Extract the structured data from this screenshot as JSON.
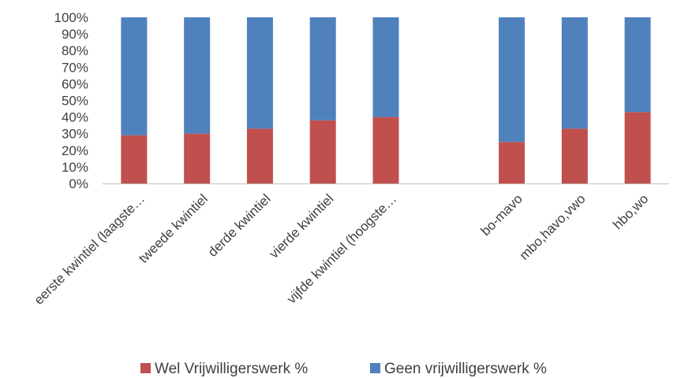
{
  "chart_data": {
    "type": "bar",
    "stacked": true,
    "categories": [
      "eerste kwintiel (laagste…",
      "tweede kwintiel",
      "derde kwintiel",
      "vierde kwintiel",
      "vijfde kwintiel (hoogste…",
      "",
      "bo-mavo",
      "mbo,havo,vwo",
      "hbo,wo"
    ],
    "series": [
      {
        "name": "Wel Vrijwilligerswerk %",
        "color": "#c0504d",
        "values": [
          29,
          30,
          33,
          38,
          40,
          null,
          25,
          33,
          43
        ]
      },
      {
        "name": "Geen vrijwilligerswerk %",
        "color": "#4f81bd",
        "values": [
          71,
          70,
          67,
          62,
          60,
          null,
          75,
          67,
          57
        ]
      }
    ],
    "ylim": [
      0,
      100
    ],
    "yticks": [
      "0%",
      "10%",
      "20%",
      "30%",
      "40%",
      "50%",
      "60%",
      "70%",
      "80%",
      "90%",
      "100%"
    ],
    "grid": false,
    "legend_position": "bottom"
  }
}
